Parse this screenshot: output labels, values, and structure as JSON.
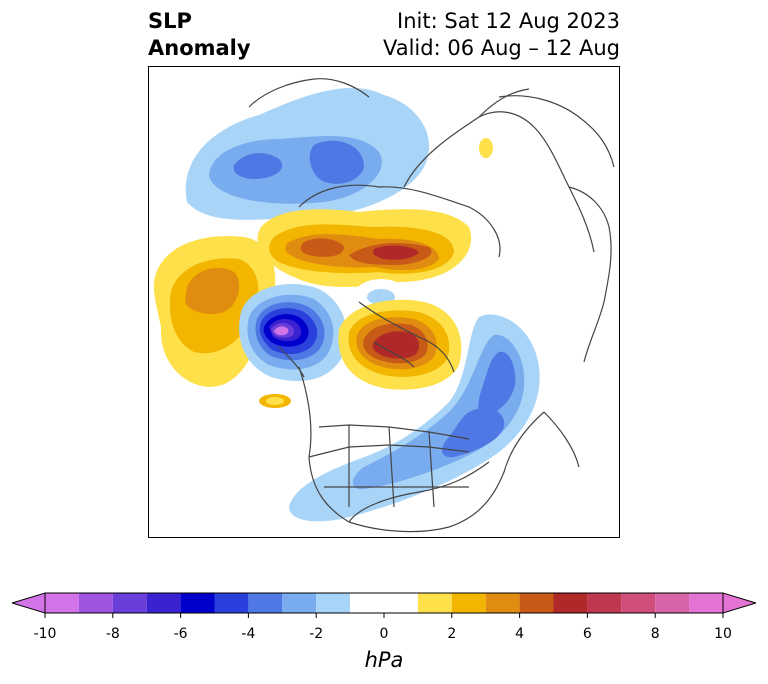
{
  "title": {
    "left_line1": "SLP",
    "left_line2": "Anomaly",
    "right_line1": "Init: Sat 12 Aug 2023",
    "right_line2": "Valid: 06 Aug – 12 Aug"
  },
  "colorbar": {
    "unit": "hPa",
    "ticks": [
      "-10",
      "-8",
      "-6",
      "-4",
      "-2",
      "0",
      "2",
      "4",
      "6",
      "8",
      "10"
    ],
    "tick_values": [
      -10,
      -8,
      -6,
      -4,
      -2,
      0,
      2,
      4,
      6,
      8,
      10
    ],
    "levels": [
      -10,
      -9,
      -8,
      -7,
      -6,
      -5,
      -4,
      -3,
      -2,
      -1,
      1,
      2,
      3,
      4,
      5,
      6,
      7,
      8,
      9,
      10
    ],
    "colors": [
      "#d274e8",
      "#9e55e0",
      "#6a3ed8",
      "#3a22d0",
      "#0000cc",
      "#2a40dd",
      "#4f78e5",
      "#78acef",
      "#a8d4f8",
      "#ffffff",
      "#fde04a",
      "#f3b600",
      "#e08c10",
      "#c85a18",
      "#b02828",
      "#c03850",
      "#d04e7c",
      "#d864a8",
      "#e474d4"
    ],
    "extend": "both"
  }
}
